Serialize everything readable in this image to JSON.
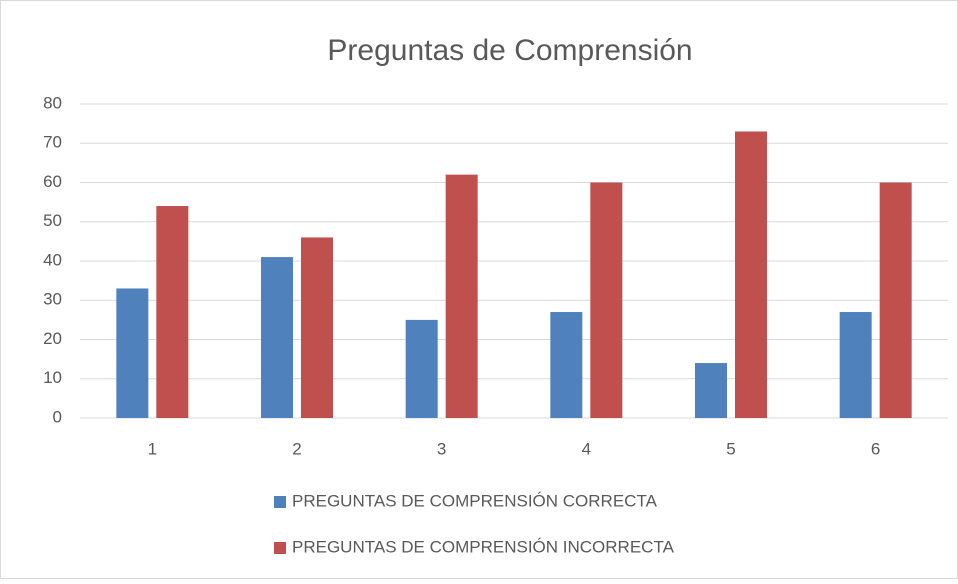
{
  "chart_data": {
    "type": "bar",
    "title": "Preguntas de Comprensión",
    "categories": [
      "1",
      "2",
      "3",
      "4",
      "5",
      "6"
    ],
    "series": [
      {
        "name": "PREGUNTAS DE COMPRENSIÓN CORRECTA",
        "color": "#4f81bd",
        "values": [
          33,
          41,
          25,
          27,
          14,
          27
        ]
      },
      {
        "name": "PREGUNTAS DE COMPRENSIÓN INCORRECTA",
        "color": "#c0504d",
        "values": [
          54,
          46,
          62,
          60,
          73,
          60
        ]
      }
    ],
    "ylim": [
      0,
      80
    ],
    "yticks": [
      0,
      10,
      20,
      30,
      40,
      50,
      60,
      70,
      80
    ],
    "grid": true,
    "legend": "bottom"
  }
}
